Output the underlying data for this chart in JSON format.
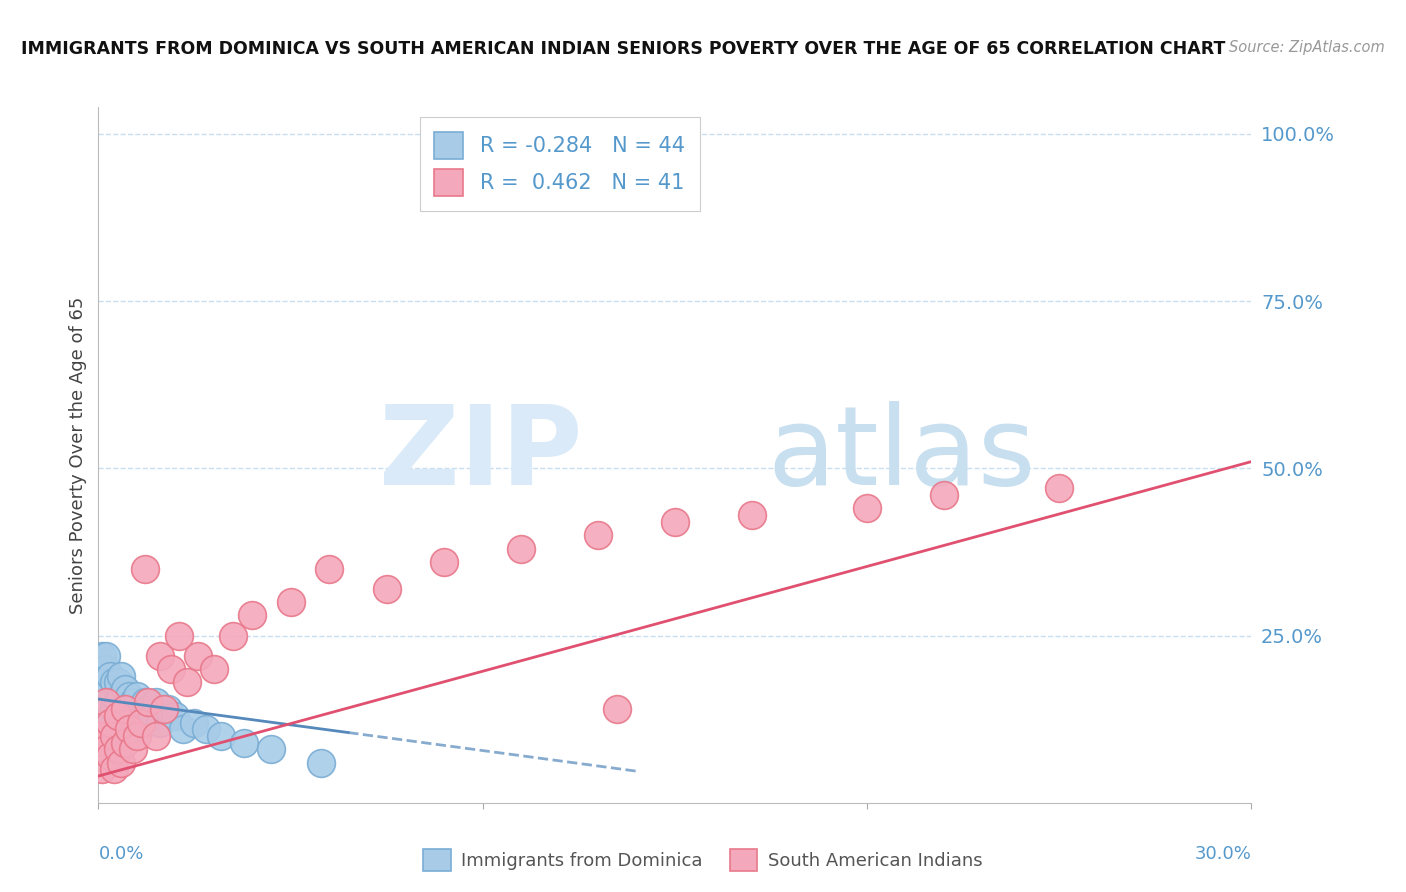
{
  "title": "IMMIGRANTS FROM DOMINICA VS SOUTH AMERICAN INDIAN SENIORS POVERTY OVER THE AGE OF 65 CORRELATION CHART",
  "source": "Source: ZipAtlas.com",
  "ylabel": "Seniors Poverty Over the Age of 65",
  "blue_R": -0.284,
  "blue_N": 44,
  "pink_R": 0.462,
  "pink_N": 41,
  "blue_color": "#a8cce8",
  "pink_color": "#f4a8bc",
  "blue_edge_color": "#7aadd4",
  "pink_edge_color": "#e8788a",
  "blue_line_color": "#5588bb",
  "pink_line_color": "#e05070",
  "blue_label": "Immigrants from Dominica",
  "pink_label": "South American Indians",
  "background_color": "#ffffff",
  "grid_color": "#c8dff0",
  "title_color": "#111111",
  "axis_label_color": "#5599cc",
  "xmin": 0.0,
  "xmax": 0.3,
  "ymin": 0.0,
  "ymax": 1.04,
  "blue_scatter_x": [
    0.001,
    0.001,
    0.001,
    0.001,
    0.002,
    0.002,
    0.002,
    0.002,
    0.002,
    0.003,
    0.003,
    0.003,
    0.003,
    0.004,
    0.004,
    0.004,
    0.005,
    0.005,
    0.005,
    0.006,
    0.006,
    0.006,
    0.007,
    0.007,
    0.008,
    0.008,
    0.009,
    0.01,
    0.01,
    0.011,
    0.012,
    0.013,
    0.014,
    0.015,
    0.016,
    0.018,
    0.02,
    0.022,
    0.025,
    0.028,
    0.032,
    0.038,
    0.045,
    0.058
  ],
  "blue_scatter_y": [
    0.16,
    0.18,
    0.2,
    0.22,
    0.14,
    0.16,
    0.18,
    0.2,
    0.22,
    0.13,
    0.15,
    0.17,
    0.19,
    0.14,
    0.16,
    0.18,
    0.12,
    0.15,
    0.18,
    0.13,
    0.16,
    0.19,
    0.14,
    0.17,
    0.13,
    0.16,
    0.15,
    0.14,
    0.16,
    0.13,
    0.15,
    0.14,
    0.13,
    0.15,
    0.12,
    0.14,
    0.13,
    0.11,
    0.12,
    0.11,
    0.1,
    0.09,
    0.08,
    0.06
  ],
  "pink_scatter_x": [
    0.001,
    0.001,
    0.002,
    0.002,
    0.003,
    0.003,
    0.004,
    0.004,
    0.005,
    0.005,
    0.006,
    0.007,
    0.007,
    0.008,
    0.009,
    0.01,
    0.011,
    0.012,
    0.013,
    0.015,
    0.016,
    0.017,
    0.019,
    0.021,
    0.023,
    0.026,
    0.03,
    0.035,
    0.04,
    0.05,
    0.06,
    0.075,
    0.09,
    0.11,
    0.13,
    0.15,
    0.17,
    0.2,
    0.22,
    0.25,
    0.135
  ],
  "pink_scatter_y": [
    0.05,
    0.1,
    0.08,
    0.15,
    0.07,
    0.12,
    0.05,
    0.1,
    0.08,
    0.13,
    0.06,
    0.09,
    0.14,
    0.11,
    0.08,
    0.1,
    0.12,
    0.35,
    0.15,
    0.1,
    0.22,
    0.14,
    0.2,
    0.25,
    0.18,
    0.22,
    0.2,
    0.25,
    0.28,
    0.3,
    0.35,
    0.32,
    0.36,
    0.38,
    0.4,
    0.42,
    0.43,
    0.44,
    0.46,
    0.47,
    0.14
  ],
  "blue_line_x0": 0.0,
  "blue_line_x1": 0.065,
  "blue_line_y0": 0.155,
  "blue_line_y1": 0.105,
  "pink_line_x0": 0.0,
  "pink_line_x1": 0.3,
  "pink_line_y0": 0.04,
  "pink_line_y1": 0.51
}
